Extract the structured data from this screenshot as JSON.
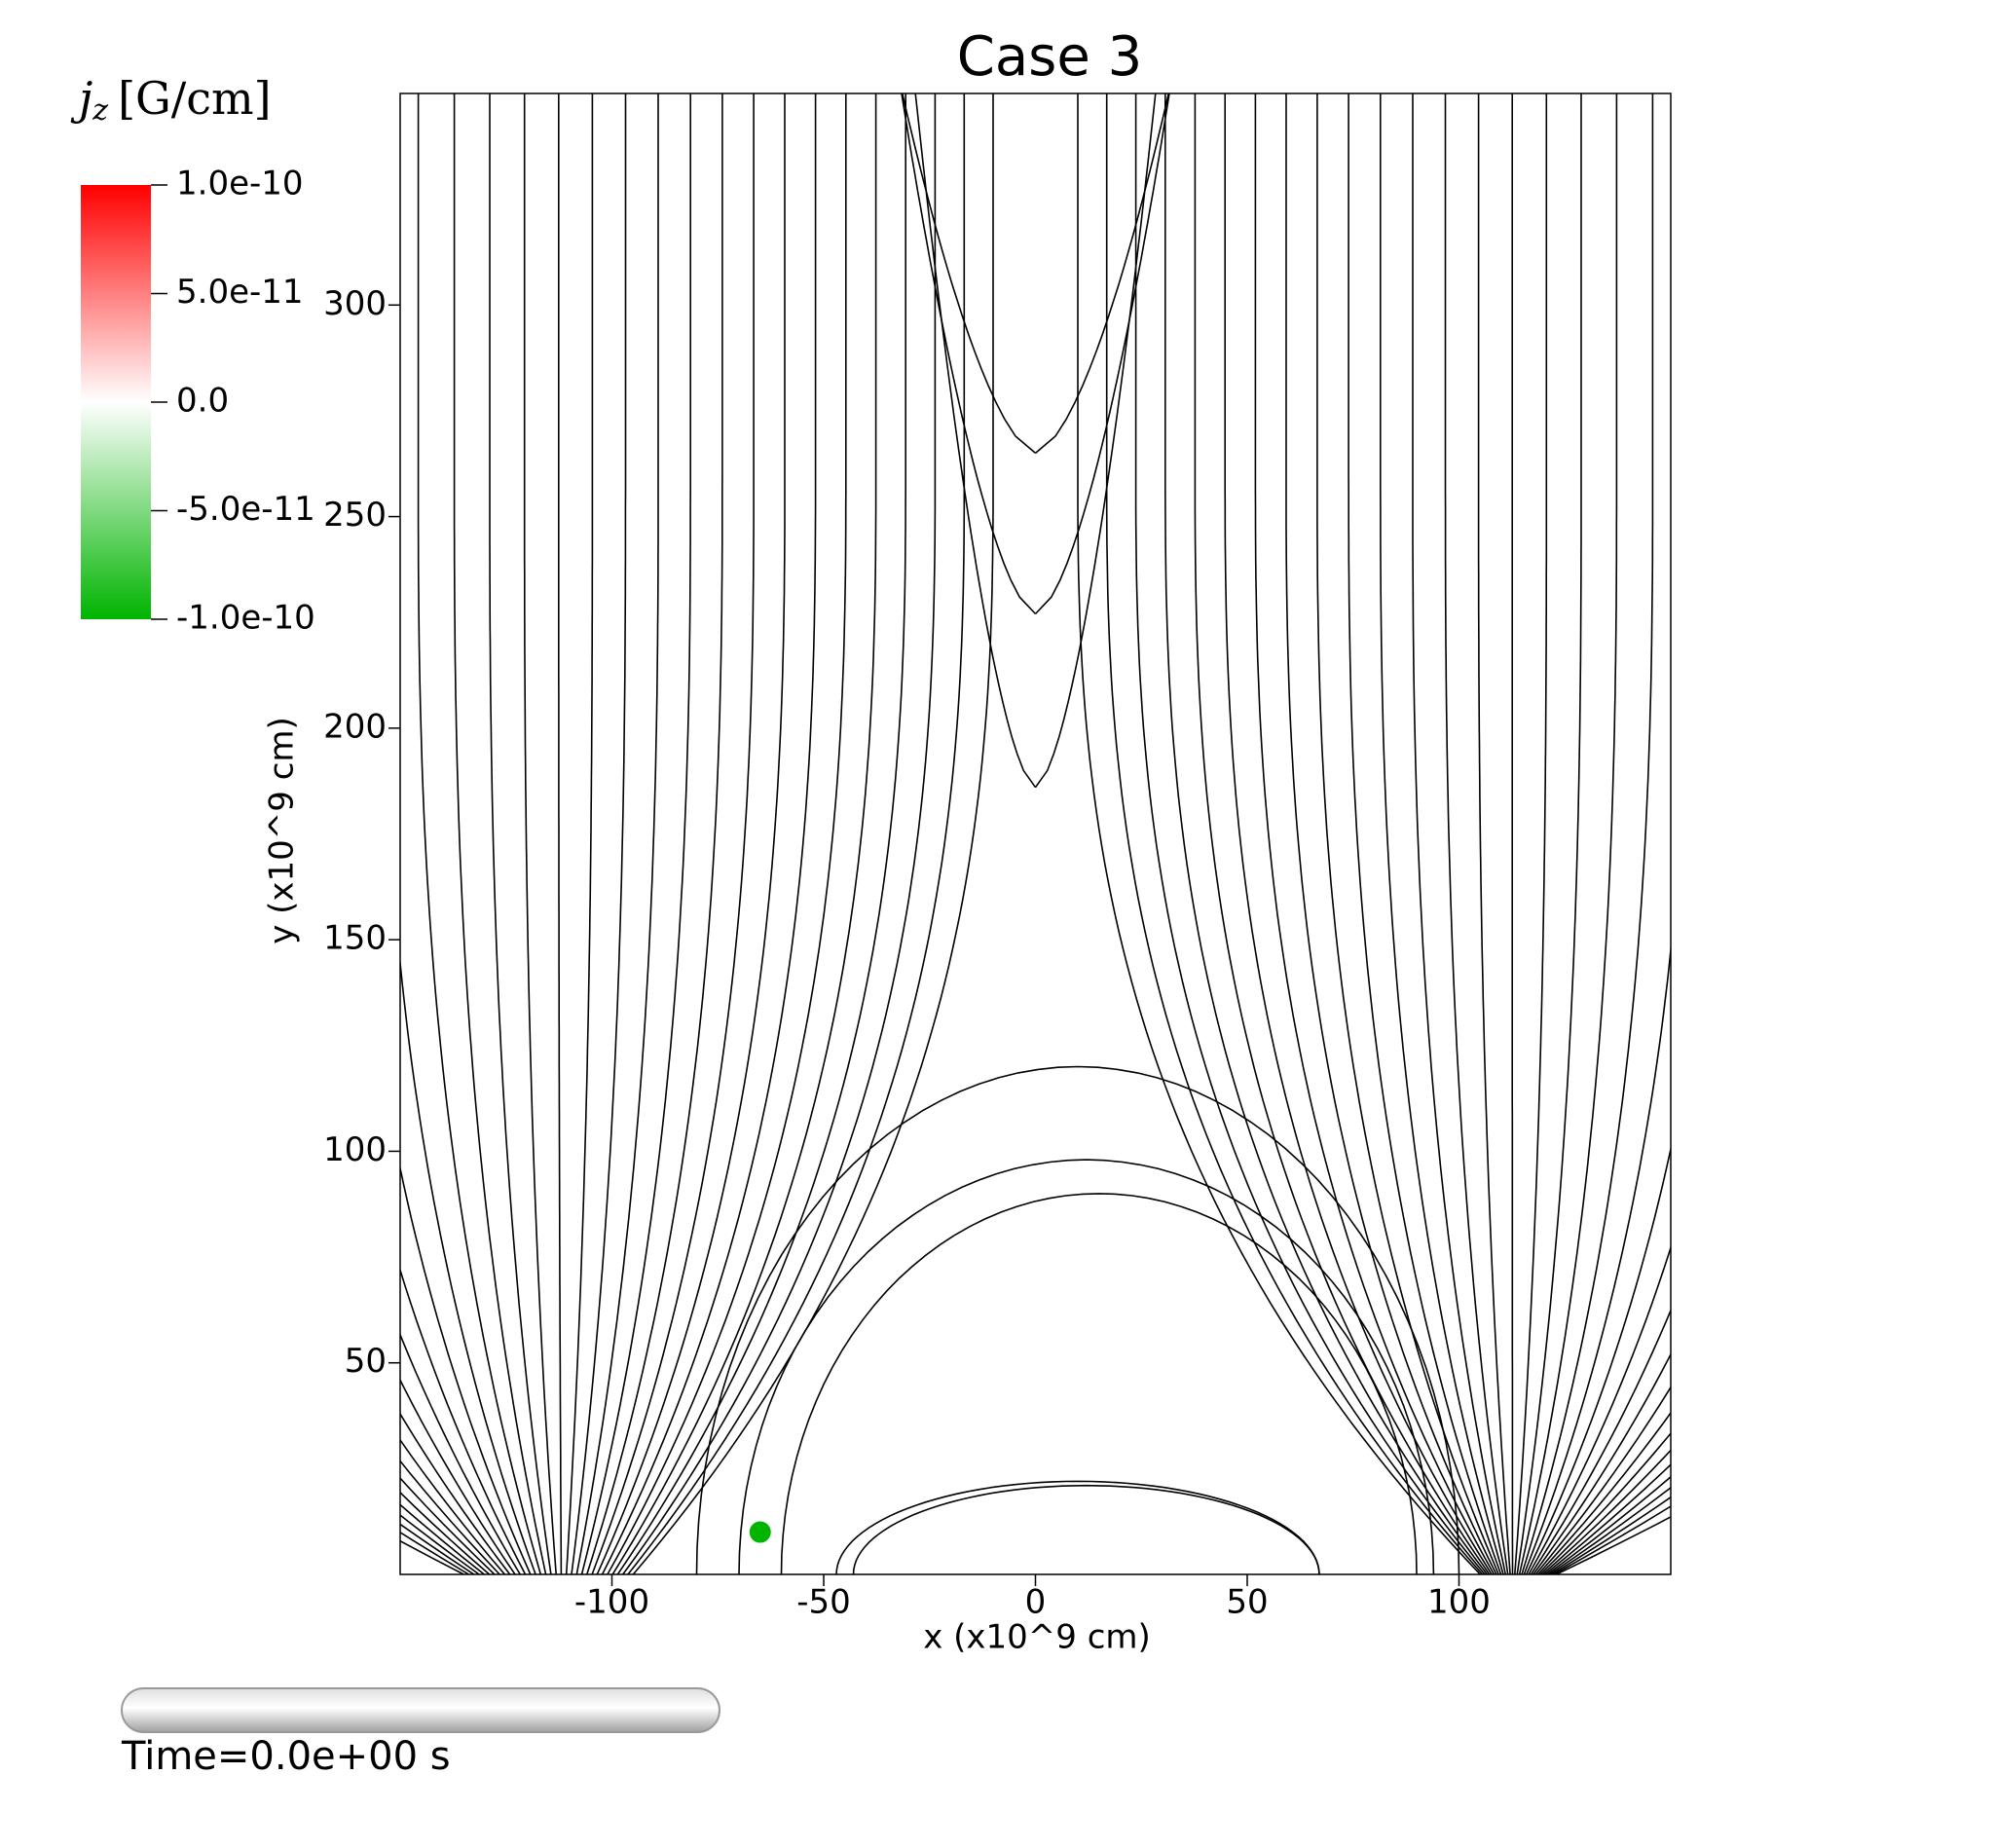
{
  "chart_data": {
    "type": "field-lines",
    "title": "Case 3",
    "x_label": "x (x10^9 cm)",
    "y_label": "y (x10^9 cm)",
    "xlim": [
      -150,
      150
    ],
    "xticks": [
      -100,
      -50,
      0,
      50,
      100
    ],
    "ylim": [
      0,
      350
    ],
    "yticks": [
      50,
      100,
      150,
      200,
      250,
      300
    ],
    "line_color": "#000000",
    "marker": {
      "x": -65,
      "y": 10,
      "color": "#00b400"
    },
    "colorbar": {
      "symbol": "j",
      "subscript": "z",
      "unit": "[G/cm]",
      "lim": [
        -1e-10,
        1e-10
      ],
      "colors": [
        "#00b400",
        "#ffffff",
        "#ff0000"
      ],
      "ticks": [
        {
          "value": 1e-10,
          "label": "1.0e-10"
        },
        {
          "value": 5e-11,
          "label": "5.0e-11"
        },
        {
          "value": 0,
          "label": "0.0"
        },
        {
          "value": -5e-11,
          "label": "-5.0e-11"
        },
        {
          "value": -1e-10,
          "label": "-1.0e-10"
        }
      ]
    },
    "time_label": "Time=0.0e+00 s"
  }
}
